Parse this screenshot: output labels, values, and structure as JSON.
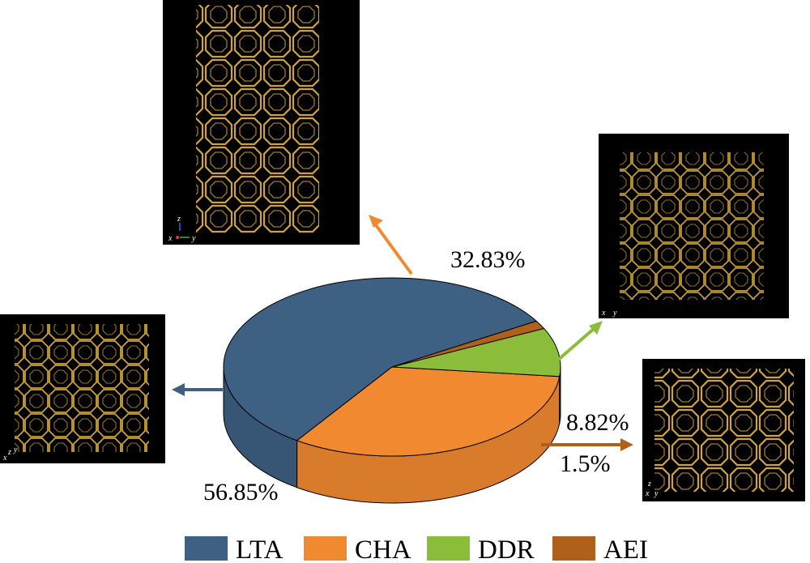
{
  "chart_data": {
    "type": "pie",
    "style": "3d",
    "categories": [
      "LTA",
      "CHA",
      "DDR",
      "AEI"
    ],
    "values": [
      56.85,
      32.83,
      8.82,
      1.5
    ],
    "labels": [
      "56.85%",
      "32.83%",
      "8.82%",
      "1.5%"
    ],
    "legend_position": "bottom",
    "colors": {
      "LTA": "#3d6083",
      "CHA": "#f0892f",
      "DDR": "#8bbd3a",
      "AEI": "#b0601b"
    }
  },
  "structure_insets": {
    "CHA": {
      "axes": [
        "z",
        "x",
        "y"
      ]
    },
    "LTA": {
      "axes": [
        "x",
        "z",
        "y"
      ]
    },
    "DDR": {
      "axes": [
        "x",
        "y"
      ]
    },
    "AEI": {
      "axes": [
        "z",
        "x",
        "y"
      ]
    }
  }
}
